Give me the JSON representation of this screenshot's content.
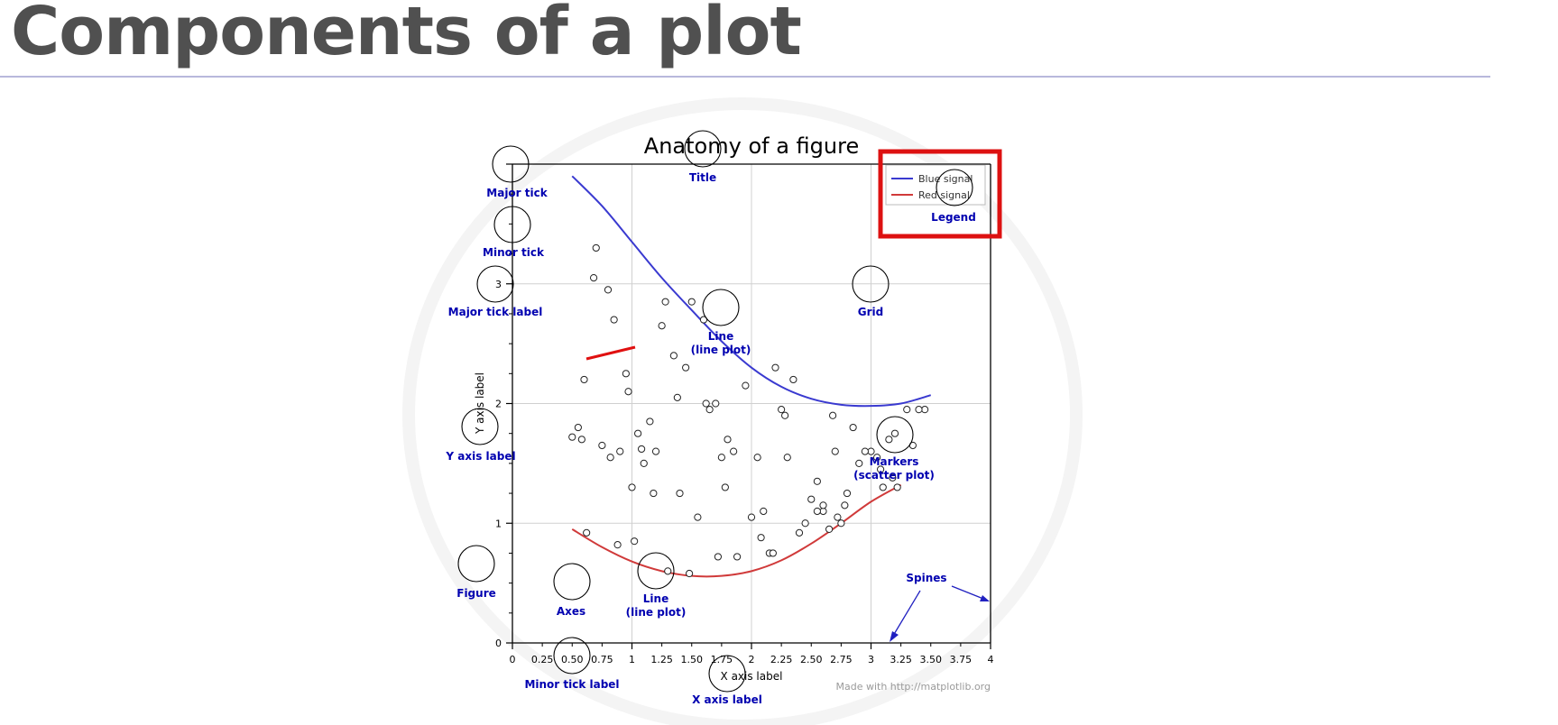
{
  "slide": {
    "title": "Components of a plot"
  },
  "chart_data": {
    "type": "line",
    "title": "Anatomy of a figure",
    "xlabel": "X axis label",
    "ylabel": "Y axis label",
    "xlim": [
      0,
      4
    ],
    "ylim": [
      0,
      4
    ],
    "xticks_major": [
      "0",
      "1",
      "2",
      "3",
      "4"
    ],
    "xticks_minor": [
      "0.25",
      "0.50",
      "0.75",
      "1.25",
      "1.50",
      "1.75",
      "2.25",
      "2.50",
      "2.75",
      "3.25",
      "3.50",
      "3.75"
    ],
    "yticks_major": [
      "0",
      "1",
      "2",
      "3",
      "4"
    ],
    "grid": true,
    "legend_position": "top-right",
    "series": [
      {
        "name": "Blue signal",
        "color": "#3a3ad0",
        "x": [
          0.5,
          0.75,
          1.0,
          1.25,
          1.5,
          1.75,
          2.0,
          2.25,
          2.5,
          2.75,
          3.0,
          3.25,
          3.5
        ],
        "y": [
          3.9,
          3.65,
          3.35,
          3.05,
          2.78,
          2.52,
          2.3,
          2.14,
          2.04,
          1.99,
          1.98,
          2.0,
          2.07
        ]
      },
      {
        "name": "Red signal",
        "color": "#d03a3a",
        "x": [
          0.5,
          0.75,
          1.0,
          1.25,
          1.5,
          1.75,
          2.0,
          2.25,
          2.5,
          2.75,
          3.0,
          3.25
        ],
        "y": [
          0.95,
          0.8,
          0.68,
          0.6,
          0.56,
          0.56,
          0.6,
          0.69,
          0.83,
          1.0,
          1.18,
          1.32
        ]
      }
    ],
    "scatter": {
      "marker": "open-circle",
      "x": [
        0.7,
        0.68,
        0.8,
        0.85,
        0.95,
        0.97,
        1.05,
        1.1,
        1.25,
        1.28,
        1.35,
        1.45,
        1.5,
        1.6,
        1.7,
        1.75,
        1.8,
        1.95,
        2.05,
        2.1,
        2.2,
        2.3,
        2.35,
        2.5,
        2.55,
        2.6,
        2.7,
        2.75,
        2.85,
        2.9,
        3.0,
        3.1,
        3.2,
        3.3,
        3.45,
        0.5,
        0.6,
        0.75,
        0.9,
        1.0,
        1.15,
        1.2,
        1.4,
        1.55,
        1.65,
        1.85,
        2.0,
        2.15,
        2.25,
        2.45,
        2.6,
        2.65,
        2.8,
        3.05,
        3.15,
        3.35,
        0.62,
        0.88,
        1.02,
        1.3,
        1.48,
        1.72,
        1.88,
        2.08,
        2.4,
        2.55,
        2.72,
        2.95,
        3.22,
        3.4,
        0.58,
        1.18,
        1.62,
        2.18,
        2.68,
        3.08,
        0.55,
        0.82,
        1.08,
        1.38,
        1.78,
        2.28,
        2.78,
        3.18
      ],
      "y": [
        3.3,
        3.05,
        2.95,
        2.7,
        2.25,
        2.1,
        1.75,
        1.5,
        2.65,
        2.85,
        2.4,
        2.3,
        2.85,
        2.7,
        2.0,
        1.55,
        1.7,
        2.15,
        1.55,
        1.1,
        2.3,
        1.55,
        2.2,
        1.2,
        1.35,
        1.1,
        1.6,
        1.0,
        1.8,
        1.5,
        1.6,
        1.3,
        1.75,
        1.95,
        1.95,
        1.72,
        2.2,
        1.65,
        1.6,
        1.3,
        1.85,
        1.6,
        1.25,
        1.05,
        1.95,
        1.6,
        1.05,
        0.75,
        1.95,
        1.0,
        1.15,
        0.95,
        1.25,
        1.55,
        1.7,
        1.65,
        0.92,
        0.82,
        0.85,
        0.6,
        0.58,
        0.72,
        0.72,
        0.88,
        0.92,
        1.1,
        1.05,
        1.6,
        1.3,
        1.95,
        1.7,
        1.25,
        2.0,
        0.75,
        1.9,
        1.45,
        1.8,
        1.55,
        1.62,
        2.05,
        1.3,
        1.9,
        1.15,
        1.38
      ]
    },
    "annotations": [
      "Title",
      "Major tick",
      "Minor tick",
      "Major tick label",
      "Legend",
      "Grid",
      "Line (line plot)",
      "Y axis label",
      "Markers (scatter plot)",
      "Figure",
      "Axes",
      "Line (line plot)",
      "Spines",
      "Minor tick label",
      "X axis label"
    ],
    "annotation_lines": {
      "line_upper": [
        "Line",
        "(line plot)"
      ],
      "line_lower": [
        "Line",
        "(line plot)"
      ],
      "markers": [
        "Markers",
        "(scatter plot)"
      ]
    },
    "credit": "Made with http://matplotlib.org",
    "highlight": {
      "target": "Legend",
      "color": "#dd1111"
    }
  }
}
